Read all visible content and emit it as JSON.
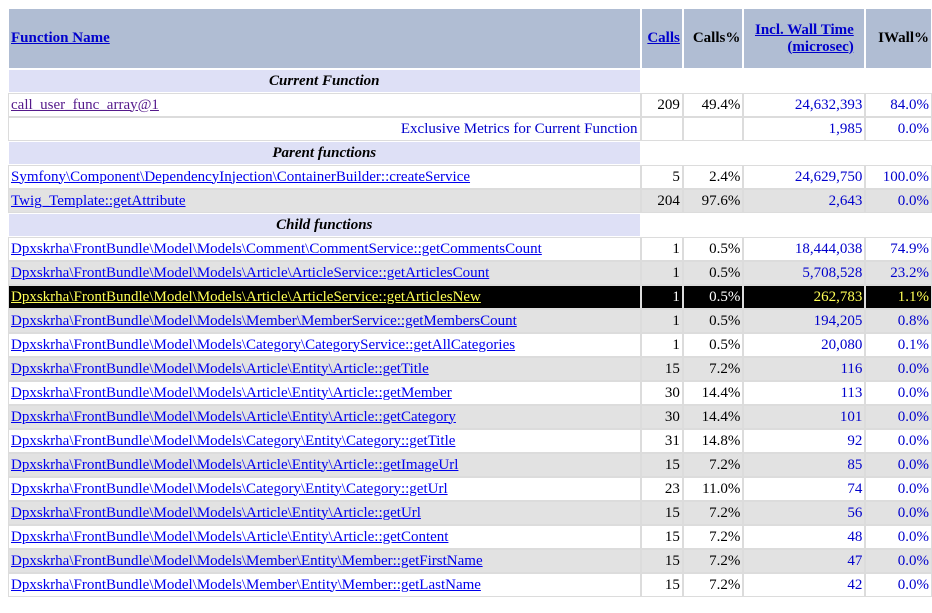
{
  "header": {
    "function_name": "Function Name",
    "calls": "Calls",
    "calls_pct": "Calls%",
    "incl_wall_time": "Incl. Wall Time",
    "incl_wall_time_unit": "(microsec)",
    "iwall_pct": "IWall%"
  },
  "sections": {
    "current": "Current Function",
    "parents": "Parent functions",
    "children": "Child functions"
  },
  "current": {
    "name": "call_user_func_array@1",
    "calls": "209",
    "calls_pct": "49.4%",
    "wall": "24,632,393",
    "wall_pct": "84.0%"
  },
  "exclusive": {
    "label": "Exclusive Metrics for Current Function",
    "wall": "1,985",
    "wall_pct": "0.0%"
  },
  "parents": [
    {
      "name": "Symfony\\Component\\DependencyInjection\\ContainerBuilder::createService",
      "calls": "5",
      "calls_pct": "2.4%",
      "wall": "24,629,750",
      "wall_pct": "100.0%"
    },
    {
      "name": "Twig_Template::getAttribute",
      "calls": "204",
      "calls_pct": "97.6%",
      "wall": "2,643",
      "wall_pct": "0.0%"
    }
  ],
  "children": [
    {
      "name": "Dpxskrha\\FrontBundle\\Model\\Models\\Comment\\CommentService::getCommentsCount",
      "calls": "1",
      "calls_pct": "0.5%",
      "wall": "18,444,038",
      "wall_pct": "74.9%"
    },
    {
      "name": "Dpxskrha\\FrontBundle\\Model\\Models\\Article\\ArticleService::getArticlesCount",
      "calls": "1",
      "calls_pct": "0.5%",
      "wall": "5,708,528",
      "wall_pct": "23.2%"
    },
    {
      "name": "Dpxskrha\\FrontBundle\\Model\\Models\\Article\\ArticleService::getArticlesNew",
      "calls": "1",
      "calls_pct": "0.5%",
      "wall": "262,783",
      "wall_pct": "1.1%"
    },
    {
      "name": "Dpxskrha\\FrontBundle\\Model\\Models\\Member\\MemberService::getMembersCount",
      "calls": "1",
      "calls_pct": "0.5%",
      "wall": "194,205",
      "wall_pct": "0.8%"
    },
    {
      "name": "Dpxskrha\\FrontBundle\\Model\\Models\\Category\\CategoryService::getAllCategories",
      "calls": "1",
      "calls_pct": "0.5%",
      "wall": "20,080",
      "wall_pct": "0.1%"
    },
    {
      "name": "Dpxskrha\\FrontBundle\\Model\\Models\\Article\\Entity\\Article::getTitle",
      "calls": "15",
      "calls_pct": "7.2%",
      "wall": "116",
      "wall_pct": "0.0%"
    },
    {
      "name": "Dpxskrha\\FrontBundle\\Model\\Models\\Article\\Entity\\Article::getMember",
      "calls": "30",
      "calls_pct": "14.4%",
      "wall": "113",
      "wall_pct": "0.0%"
    },
    {
      "name": "Dpxskrha\\FrontBundle\\Model\\Models\\Article\\Entity\\Article::getCategory",
      "calls": "30",
      "calls_pct": "14.4%",
      "wall": "101",
      "wall_pct": "0.0%"
    },
    {
      "name": "Dpxskrha\\FrontBundle\\Model\\Models\\Category\\Entity\\Category::getTitle",
      "calls": "31",
      "calls_pct": "14.8%",
      "wall": "92",
      "wall_pct": "0.0%"
    },
    {
      "name": "Dpxskrha\\FrontBundle\\Model\\Models\\Article\\Entity\\Article::getImageUrl",
      "calls": "15",
      "calls_pct": "7.2%",
      "wall": "85",
      "wall_pct": "0.0%"
    },
    {
      "name": "Dpxskrha\\FrontBundle\\Model\\Models\\Category\\Entity\\Category::getUrl",
      "calls": "23",
      "calls_pct": "11.0%",
      "wall": "74",
      "wall_pct": "0.0%"
    },
    {
      "name": "Dpxskrha\\FrontBundle\\Model\\Models\\Article\\Entity\\Article::getUrl",
      "calls": "15",
      "calls_pct": "7.2%",
      "wall": "56",
      "wall_pct": "0.0%"
    },
    {
      "name": "Dpxskrha\\FrontBundle\\Model\\Models\\Article\\Entity\\Article::getContent",
      "calls": "15",
      "calls_pct": "7.2%",
      "wall": "48",
      "wall_pct": "0.0%"
    },
    {
      "name": "Dpxskrha\\FrontBundle\\Model\\Models\\Member\\Entity\\Member::getFirstName",
      "calls": "15",
      "calls_pct": "7.2%",
      "wall": "47",
      "wall_pct": "0.0%"
    },
    {
      "name": "Dpxskrha\\FrontBundle\\Model\\Models\\Member\\Entity\\Member::getLastName",
      "calls": "15",
      "calls_pct": "7.2%",
      "wall": "42",
      "wall_pct": "0.0%"
    }
  ]
}
